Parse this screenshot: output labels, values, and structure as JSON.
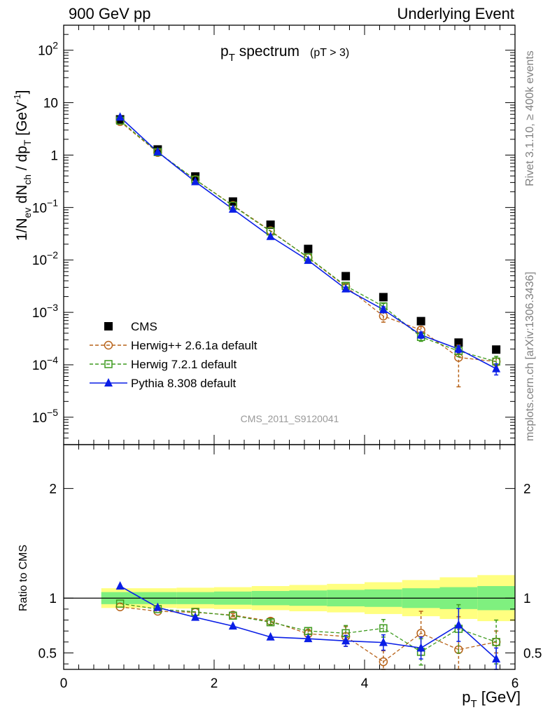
{
  "header": {
    "left": "900 GeV pp",
    "right": "Underlying Event"
  },
  "side_labels": {
    "rivet": "Rivet 3.1.10, ≥ 400k events",
    "mcplots": "mcplots.cern.ch [arXiv:1306.3436]"
  },
  "watermark": "CMS_2011_S9120041",
  "chart_data": [
    {
      "type": "scatter",
      "panel": "main",
      "title": "p_T spectrum",
      "title_main": "p",
      "title_sub": "T",
      "title_rest": " spectrum",
      "title_cut": "(pT >  3)",
      "ylabel": "1/N_ev dN_ch / dp_T [GeV^-1]",
      "y_scale": "log",
      "ylim": [
        3e-06,
        300
      ],
      "xlim": [
        0,
        6
      ],
      "y_ticks": [
        {
          "value": 1e-05,
          "base": "10",
          "exp": "−5"
        },
        {
          "value": 0.0001,
          "base": "10",
          "exp": "−4"
        },
        {
          "value": 0.001,
          "base": "10",
          "exp": "−3"
        },
        {
          "value": 0.01,
          "base": "10",
          "exp": "−2"
        },
        {
          "value": 0.1,
          "base": "10",
          "exp": "−1"
        },
        {
          "value": 1,
          "base": "1",
          "exp": ""
        },
        {
          "value": 10,
          "base": "10",
          "exp": ""
        },
        {
          "value": 100,
          "base": "10",
          "exp": "2"
        }
      ],
      "x": [
        0.75,
        1.25,
        1.75,
        2.25,
        2.75,
        3.25,
        3.75,
        4.25,
        4.75,
        5.25,
        5.75
      ],
      "series": [
        {
          "name": "CMS",
          "marker": "square-filled",
          "color": "#000000",
          "line": "none",
          "values": [
            4.8,
            1.28,
            0.39,
            0.13,
            0.047,
            0.0162,
            0.0049,
            0.00195,
            0.00068,
            0.000265,
            0.000195
          ]
        },
        {
          "name": "Herwig++ 2.6.1a default",
          "marker": "circle-open",
          "color": "#b8631a",
          "line": "dashed",
          "values": [
            4.35,
            1.12,
            0.34,
            0.11,
            0.036,
            0.011,
            0.0031,
            0.00085,
            0.00046,
            0.000138,
            0.000115
          ],
          "errors": [
            0,
            0,
            0,
            0,
            0,
            0,
            0.0003,
            0.0002,
            8e-05,
            0.0001,
            2e-05
          ]
        },
        {
          "name": "Herwig 7.2.1 default",
          "marker": "square-open",
          "color": "#3d9a1e",
          "line": "dashed",
          "values": [
            4.55,
            1.14,
            0.34,
            0.108,
            0.035,
            0.0112,
            0.0032,
            0.0013,
            0.00034,
            0.000183,
            0.000115
          ],
          "errors": [
            0,
            0,
            0,
            0,
            0,
            0,
            0.0003,
            0.00018,
            6e-05,
            4e-05,
            3e-05
          ]
        },
        {
          "name": "Pythia 8.308 default",
          "marker": "triangle-filled",
          "color": "#0a1ee6",
          "line": "solid",
          "values": [
            5.3,
            1.15,
            0.31,
            0.093,
            0.028,
            0.0098,
            0.0028,
            0.00113,
            0.00037,
            0.0002,
            8.4e-05
          ],
          "errors": [
            0,
            0,
            0,
            0,
            0,
            0,
            0.0002,
            0.00015,
            5e-05,
            3e-05,
            2e-05
          ]
        }
      ],
      "legend_position": "lower-left"
    },
    {
      "type": "scatter",
      "panel": "ratio",
      "ylabel": "Ratio to CMS",
      "xlabel": "p_T [GeV]",
      "xlabel_main": "p",
      "xlabel_sub": "T",
      "xlabel_rest": " [GeV]",
      "ylim": [
        0.35,
        2.4
      ],
      "xlim": [
        0,
        6
      ],
      "y_ticks": [
        0.5,
        1,
        2
      ],
      "y_tick_labels": [
        "0.5",
        "1",
        "2"
      ],
      "x_ticks": [
        0,
        2,
        4,
        6
      ],
      "x_tick_labels": [
        "0",
        "2",
        "4",
        "6"
      ],
      "reference_line": 1,
      "x": [
        0.75,
        1.25,
        1.75,
        2.25,
        2.75,
        3.25,
        3.75,
        4.25,
        4.75,
        5.25,
        5.75
      ],
      "band_edges": [
        0.5,
        1.0,
        1.5,
        2.0,
        2.5,
        3.0,
        3.5,
        4.0,
        4.5,
        5.0,
        5.5,
        6.0
      ],
      "band_inner": [
        0.055,
        0.055,
        0.055,
        0.06,
        0.065,
        0.07,
        0.075,
        0.08,
        0.09,
        0.1,
        0.11
      ],
      "band_outer": [
        0.09,
        0.09,
        0.095,
        0.1,
        0.11,
        0.12,
        0.13,
        0.145,
        0.165,
        0.19,
        0.21
      ],
      "band_colors": {
        "inner": "#7ff07f",
        "outer": "#ffff80"
      },
      "series": [
        {
          "name": "Herwig++ 2.6.1a default",
          "color": "#b8631a",
          "marker": "circle-open",
          "line": "dashed",
          "values": [
            0.92,
            0.88,
            0.87,
            0.845,
            0.79,
            0.675,
            0.65,
            0.42,
            0.68,
            0.53,
            0.6
          ],
          "errors": [
            0,
            0,
            0,
            0.015,
            0.03,
            0.04,
            0.09,
            0.1,
            0.2,
            0.3,
            0.1
          ]
        },
        {
          "name": "Herwig 7.2.1 default",
          "color": "#3d9a1e",
          "marker": "square-open",
          "line": "dashed",
          "values": [
            0.95,
            0.9,
            0.875,
            0.84,
            0.78,
            0.7,
            0.68,
            0.725,
            0.51,
            0.72,
            0.6
          ],
          "errors": [
            0,
            0,
            0,
            0,
            0.02,
            0.03,
            0.07,
            0.08,
            0.12,
            0.22,
            0.2
          ]
        },
        {
          "name": "Pythia 8.308 default",
          "color": "#0a1ee6",
          "marker": "triangle-filled",
          "line": "solid",
          "values": [
            1.11,
            0.915,
            0.825,
            0.745,
            0.645,
            0.63,
            0.61,
            0.595,
            0.545,
            0.755,
            0.445
          ],
          "errors": [
            0,
            0,
            0,
            0,
            0,
            0.02,
            0.05,
            0.07,
            0.1,
            0.15,
            0.1
          ]
        }
      ]
    }
  ]
}
